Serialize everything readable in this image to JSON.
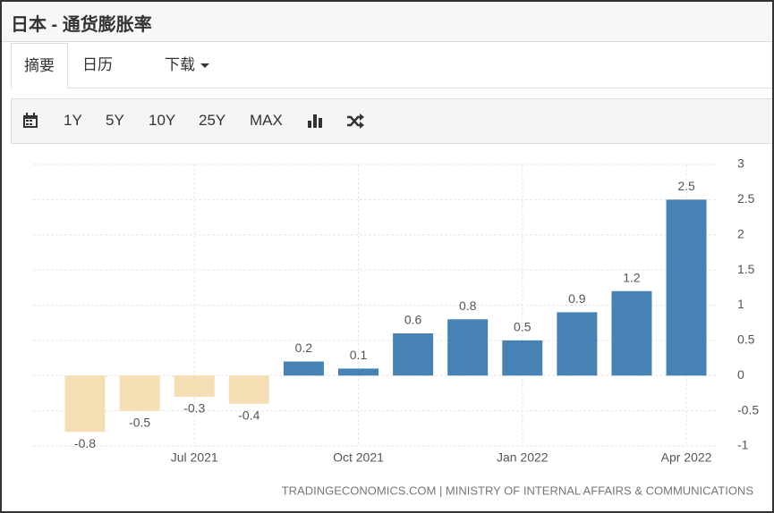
{
  "header": {
    "title": "日本 - 通货膨胀率"
  },
  "tabs": [
    "摘要",
    "日历",
    "下载"
  ],
  "toolbar": [
    "1Y",
    "5Y",
    "10Y",
    "25Y",
    "MAX"
  ],
  "chart_data": {
    "type": "bar",
    "categories": [
      null,
      null,
      "Jul 2021",
      null,
      null,
      "Oct 2021",
      null,
      null,
      "Jan 2022",
      null,
      null,
      "Apr 2022"
    ],
    "values": [
      -0.8,
      -0.5,
      -0.3,
      -0.4,
      0.2,
      0.1,
      0.6,
      0.8,
      0.5,
      0.9,
      1.2,
      2.5
    ],
    "color": "#4682b4",
    "negative_color": "#f5deb3",
    "ylim": [
      -1,
      3
    ],
    "yticks": [
      3,
      2.5,
      2,
      1.5,
      1,
      0.5,
      0,
      -0.5,
      -1
    ],
    "grid": true,
    "source": "TRADINGECONOMICS.COM | MINISTRY OF INTERNAL AFFAIRS & COMMUNICATIONS"
  }
}
